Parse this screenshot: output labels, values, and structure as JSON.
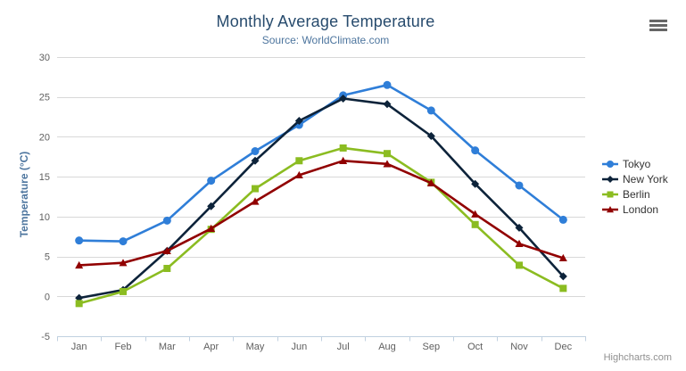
{
  "icons": {
    "context_menu": "hamburger-icon"
  },
  "credits": {
    "label": "Highcharts.com"
  },
  "chart_data": {
    "type": "line",
    "title": "Monthly Average Temperature",
    "subtitle": "Source: WorldClimate.com",
    "categories": [
      "Jan",
      "Feb",
      "Mar",
      "Apr",
      "May",
      "Jun",
      "Jul",
      "Aug",
      "Sep",
      "Oct",
      "Nov",
      "Dec"
    ],
    "series": [
      {
        "name": "Tokyo",
        "color": "#2f7ed8",
        "marker": "circle",
        "values": [
          7.0,
          6.9,
          9.5,
          14.5,
          18.2,
          21.5,
          25.2,
          26.5,
          23.3,
          18.3,
          13.9,
          9.6
        ]
      },
      {
        "name": "New York",
        "color": "#0d233a",
        "marker": "diamond",
        "values": [
          -0.2,
          0.8,
          5.7,
          11.3,
          17.0,
          22.0,
          24.8,
          24.1,
          20.1,
          14.1,
          8.6,
          2.5
        ]
      },
      {
        "name": "Berlin",
        "color": "#8bbc21",
        "marker": "square",
        "values": [
          -0.9,
          0.6,
          3.5,
          8.4,
          13.5,
          17.0,
          18.6,
          17.9,
          14.3,
          9.0,
          3.9,
          1.0
        ]
      },
      {
        "name": "London",
        "color": "#910000",
        "marker": "triangle",
        "values": [
          3.9,
          4.2,
          5.7,
          8.5,
          11.9,
          15.2,
          17.0,
          16.6,
          14.2,
          10.3,
          6.6,
          4.8
        ]
      }
    ],
    "xlabel": "",
    "ylabel": "Temperature (°C)",
    "ylim": [
      -5,
      30
    ],
    "ytick_step": 5,
    "grid": "horizontal",
    "legend_position": "right",
    "grid_color": "#d8d8d8",
    "axis_line_color": "#c0d0e0",
    "axis_label_color": "#606060"
  }
}
